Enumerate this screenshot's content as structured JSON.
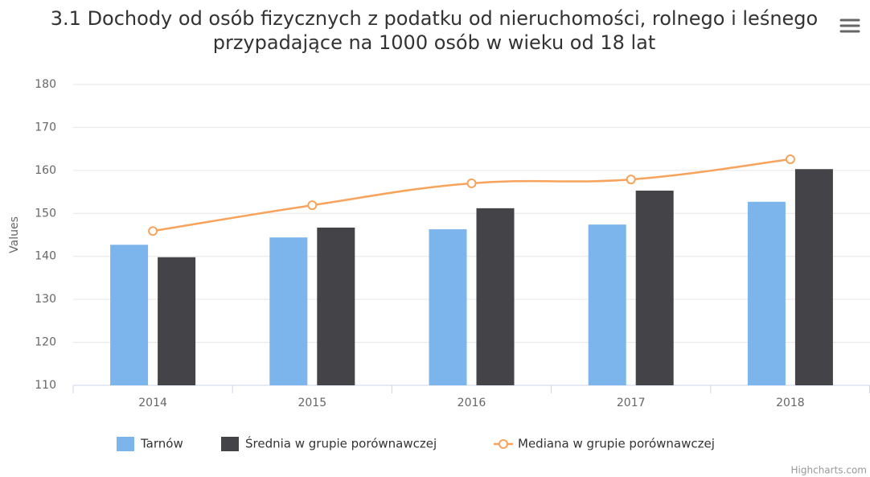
{
  "chart_data": {
    "type": "bar",
    "title": "3.1 Dochody od osób fizycznych z podatku od nieruchomości, rolnego i leśnego przypadające na 1000 osób w wieku od 18 lat",
    "y_axis_label": "Values",
    "categories": [
      "2014",
      "2015",
      "2016",
      "2017",
      "2018"
    ],
    "series": [
      {
        "name": "Tarnów",
        "type": "bar",
        "color": "#7cb5ec",
        "values": [
          142.7,
          144.4,
          146.3,
          147.4,
          152.7
        ]
      },
      {
        "name": "Średnia w grupie porównawczej",
        "type": "bar",
        "color": "#434348",
        "values": [
          139.8,
          146.7,
          151.2,
          155.3,
          160.3
        ]
      },
      {
        "name": "Mediana w grupie porównawczej",
        "type": "line",
        "color": "#f7a35c",
        "values": [
          145.9,
          151.9,
          157.0,
          157.9,
          162.6
        ]
      }
    ],
    "ylim": [
      110,
      180
    ],
    "yticks": [
      110,
      120,
      130,
      140,
      150,
      160,
      170,
      180
    ],
    "grid": true,
    "legend": "bottom",
    "credits": "Highcharts.com"
  }
}
